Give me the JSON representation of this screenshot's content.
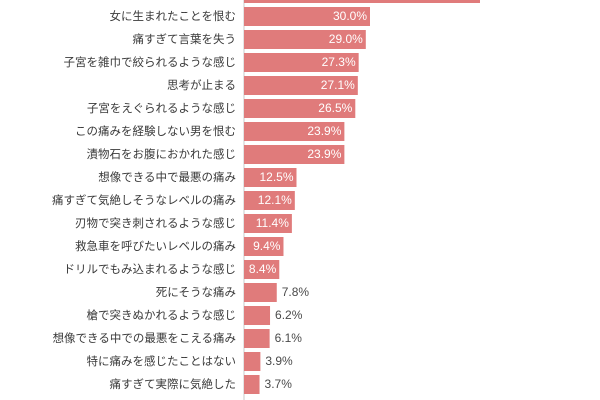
{
  "chart_data": {
    "type": "bar",
    "orientation": "horizontal",
    "unit": "%",
    "bar_color": "#e07b7b",
    "axis_color": "#c9c9c9",
    "categories": [
      "女に生まれたことを恨む",
      "痛すぎて言葉を失う",
      "子宮を雑巾で絞られるような感じ",
      "思考が止まる",
      "子宮をえぐられるような感じ",
      "この痛みを経験しない男を恨む",
      "漬物石をお腹におかれた感じ",
      "想像できる中で最悪の痛み",
      "痛すぎて気絶しそうなレベルの痛み",
      "刃物で突き刺されるような感じ",
      "救急車を呼びたいレベルの痛み",
      "ドリルでもみ込まれるような感じ",
      "死にそうな痛み",
      "槍で突きぬかれるような感じ",
      "想像できる中での最悪をこえる痛み",
      "特に痛みを感じたことはない",
      "痛すぎて実際に気絶した"
    ],
    "values": [
      30.0,
      29.0,
      27.3,
      27.1,
      26.5,
      23.9,
      23.9,
      12.5,
      12.1,
      11.4,
      9.4,
      8.4,
      7.8,
      6.2,
      6.1,
      3.9,
      3.7
    ],
    "value_labels": [
      "30.0%",
      "29.0%",
      "27.3%",
      "27.1%",
      "26.5%",
      "23.9%",
      "23.9%",
      "12.5%",
      "12.1%",
      "11.4%",
      "9.4%",
      "8.4%",
      "7.8%",
      "6.2%",
      "6.1%",
      "3.9%",
      "3.7%"
    ],
    "label_threshold": 8.0
  }
}
